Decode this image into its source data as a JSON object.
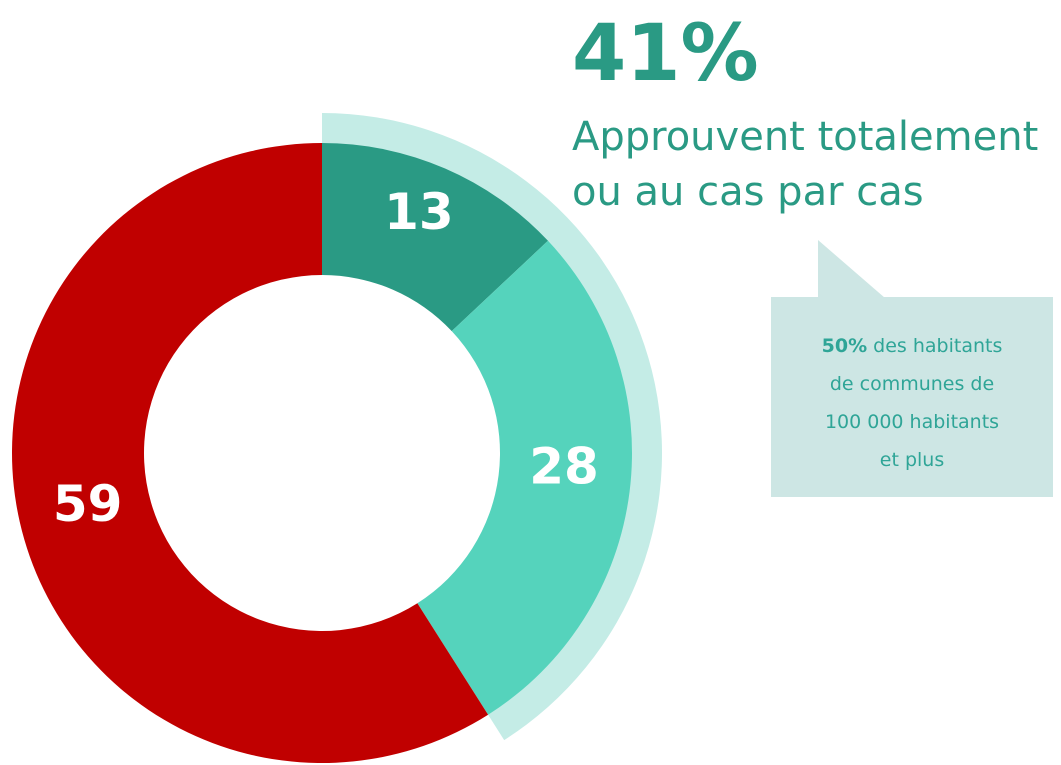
{
  "chart_data": {
    "type": "donut",
    "values": [
      13,
      28,
      59
    ],
    "colors": [
      "#2a9a84",
      "#55d3bc",
      "#c00000"
    ],
    "highlight": {
      "value": 41,
      "label": "41%",
      "lines": [
        "Approuvent totalement",
        "ou au cas par cas"
      ],
      "color": "#c4ece6"
    },
    "callout": {
      "highlight": "50%",
      "lines": [
        "des habitants",
        "de communes de",
        "100 000 habitants",
        "et plus"
      ]
    }
  }
}
